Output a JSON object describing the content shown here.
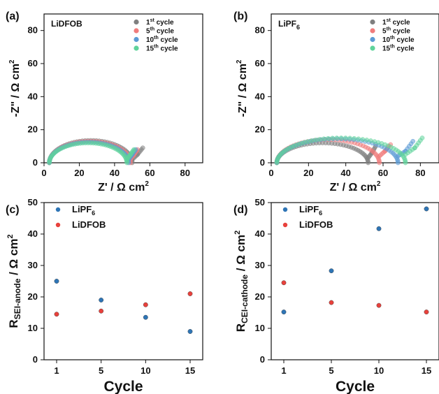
{
  "chart_data": [
    {
      "panel": "(a)",
      "type": "scatter",
      "title": "LiDFOB",
      "xlabel": "Z' / Ω cm",
      "ylabel": "-Z\" / Ω cm",
      "xlim": [
        0,
        90
      ],
      "ylim": [
        0,
        90
      ],
      "xticks": [
        "0",
        "20",
        "40",
        "60",
        "80"
      ],
      "yticks": [
        "0",
        "20",
        "40",
        "60",
        "80"
      ],
      "legend": "top-right",
      "series": [
        {
          "name": "1st cycle",
          "base": "1",
          "sup": "st",
          "suffix": " cycle",
          "color": "#7f7f7f",
          "arc": {
            "r0": 3,
            "r1": 50,
            "h": 13.5,
            "tail": [
              [
                50,
                2
              ],
              [
                53,
                5
              ],
              [
                56,
                9
              ]
            ]
          }
        },
        {
          "name": "5th cycle",
          "base": "5",
          "sup": "th",
          "suffix": " cycle",
          "color": "#f07c7c",
          "arc": {
            "r0": 3,
            "r1": 49,
            "h": 13,
            "tail": [
              [
                49,
                2
              ],
              [
                51,
                5
              ],
              [
                53,
                8
              ]
            ]
          }
        },
        {
          "name": "10th cycle",
          "base": "10",
          "sup": "th",
          "suffix": " cycle",
          "color": "#5b9bd5",
          "arc": {
            "r0": 3,
            "r1": 48,
            "h": 12.5,
            "tail": [
              [
                48,
                2
              ],
              [
                50,
                5
              ],
              [
                52,
                8
              ]
            ]
          }
        },
        {
          "name": "15th cycle",
          "base": "15",
          "sup": "th",
          "suffix": " cycle",
          "color": "#5fd39b",
          "arc": {
            "r0": 3,
            "r1": 47,
            "h": 12,
            "tail": [
              [
                47,
                2
              ],
              [
                49,
                5
              ],
              [
                51,
                8
              ]
            ]
          }
        }
      ]
    },
    {
      "panel": "(b)",
      "type": "scatter",
      "title": "LiPF",
      "title_sub": "6",
      "xlabel": "Z' / Ω cm",
      "ylabel": "-Z\" / Ω cm",
      "xlim": [
        0,
        90
      ],
      "ylim": [
        0,
        90
      ],
      "xticks": [
        "0",
        "20",
        "40",
        "60",
        "80"
      ],
      "yticks": [
        "0",
        "20",
        "40",
        "60",
        "80"
      ],
      "legend": "top-right",
      "series": [
        {
          "name": "1st cycle",
          "base": "1",
          "sup": "st",
          "suffix": " cycle",
          "color": "#7f7f7f",
          "arc": {
            "r0": 3,
            "r1": 52,
            "h": 12,
            "tail": [
              [
                52,
                3
              ],
              [
                54,
                6
              ],
              [
                56,
                10
              ]
            ]
          }
        },
        {
          "name": "5th cycle",
          "base": "5",
          "sup": "th",
          "suffix": " cycle",
          "color": "#f07c7c",
          "arc": {
            "r0": 3,
            "r1": 58,
            "h": 14,
            "tail": [
              [
                58,
                4
              ],
              [
                61,
                7
              ],
              [
                64,
                11
              ]
            ]
          }
        },
        {
          "name": "10th cycle",
          "base": "10",
          "sup": "th",
          "suffix": " cycle",
          "color": "#5b9bd5",
          "arc": {
            "r0": 3,
            "r1": 68,
            "h": 14.5,
            "tail": [
              [
                68,
                4
              ],
              [
                72,
                7
              ],
              [
                76,
                13
              ]
            ]
          }
        },
        {
          "name": "15th cycle",
          "base": "15",
          "sup": "th",
          "suffix": " cycle",
          "color": "#5fd39b",
          "arc": {
            "r0": 3,
            "r1": 72,
            "h": 15,
            "tail": [
              [
                72,
                5
              ],
              [
                77,
                9
              ],
              [
                81,
                15
              ]
            ]
          }
        }
      ]
    },
    {
      "panel": "(c)",
      "type": "scatter",
      "xlabel": "Cycle",
      "ylabel": "R",
      "ylabel_sub": "SEI-anode",
      "ylabel_unit": "/ Ω cm",
      "categories": [
        "1",
        "5",
        "10",
        "15"
      ],
      "ylim": [
        0,
        50
      ],
      "yticks": [
        "0",
        "10",
        "20",
        "30",
        "40",
        "50"
      ],
      "legend": "top-left",
      "series": [
        {
          "name": "LiPF6",
          "base": "LiPF",
          "sub": "6",
          "color": "#2e75b6",
          "values": [
            25.0,
            19.0,
            13.5,
            9.0
          ]
        },
        {
          "name": "LiDFOB",
          "base": "LiDFOB",
          "sub": "",
          "color": "#e8413c",
          "values": [
            14.5,
            15.5,
            17.5,
            21.0
          ]
        }
      ]
    },
    {
      "panel": "(d)",
      "type": "scatter",
      "xlabel": "Cycle",
      "ylabel": "R",
      "ylabel_sub": "CEI-cathode",
      "ylabel_unit": "/ Ω cm",
      "categories": [
        "1",
        "5",
        "10",
        "15"
      ],
      "ylim": [
        0,
        50
      ],
      "yticks": [
        "0",
        "10",
        "20",
        "30",
        "40",
        "50"
      ],
      "legend": "top-left",
      "series": [
        {
          "name": "LiPF6",
          "base": "LiPF",
          "sub": "6",
          "color": "#2e75b6",
          "values": [
            15.2,
            28.3,
            41.7,
            48.0
          ]
        },
        {
          "name": "LiDFOB",
          "base": "LiDFOB",
          "sub": "",
          "color": "#e8413c",
          "values": [
            24.5,
            18.2,
            17.3,
            15.2
          ]
        }
      ]
    }
  ]
}
